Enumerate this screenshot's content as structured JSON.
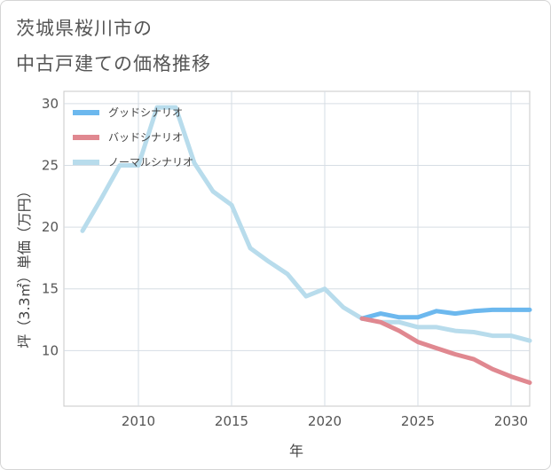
{
  "title_line1": "茨城県桜川市の",
  "title_line2": "中古戸建ての価格推移",
  "chart_data": {
    "type": "line",
    "xlabel": "年",
    "ylabel": "坪（3.3㎡）単価（万円）",
    "xlim": [
      2006,
      2031
    ],
    "ylim": [
      5.5,
      31
    ],
    "xticks": [
      2010,
      2015,
      2020,
      2025,
      2030
    ],
    "yticks": [
      10,
      15,
      20,
      25,
      30
    ],
    "grid": true,
    "legend_position": "top-left",
    "series": [
      {
        "name": "グッドシナリオ",
        "color": "#6cb8ee",
        "x": [
          2022,
          2023,
          2024,
          2025,
          2026,
          2027,
          2028,
          2029,
          2030,
          2031
        ],
        "y": [
          12.6,
          13.0,
          12.7,
          12.7,
          13.2,
          13.0,
          13.2,
          13.3,
          13.3,
          13.3
        ]
      },
      {
        "name": "バッドシナリオ",
        "color": "#e08890",
        "x": [
          2022,
          2023,
          2024,
          2025,
          2026,
          2027,
          2028,
          2029,
          2030,
          2031
        ],
        "y": [
          12.6,
          12.3,
          11.6,
          10.7,
          10.2,
          9.7,
          9.3,
          8.5,
          7.9,
          7.4
        ]
      },
      {
        "name": "ノーマルシナリオ",
        "color": "#b8dcec",
        "x": [
          2007,
          2008,
          2009,
          2010,
          2011,
          2012,
          2013,
          2014,
          2015,
          2016,
          2017,
          2018,
          2019,
          2020,
          2021,
          2022,
          2023,
          2024,
          2025,
          2026,
          2027,
          2028,
          2029,
          2030,
          2031
        ],
        "y": [
          19.7,
          22.3,
          25.0,
          25.0,
          29.7,
          29.7,
          25.2,
          22.9,
          21.8,
          18.3,
          17.2,
          16.2,
          14.4,
          15.0,
          13.5,
          12.6,
          12.3,
          12.3,
          11.9,
          11.9,
          11.6,
          11.5,
          11.2,
          11.2,
          10.8
        ]
      }
    ]
  }
}
